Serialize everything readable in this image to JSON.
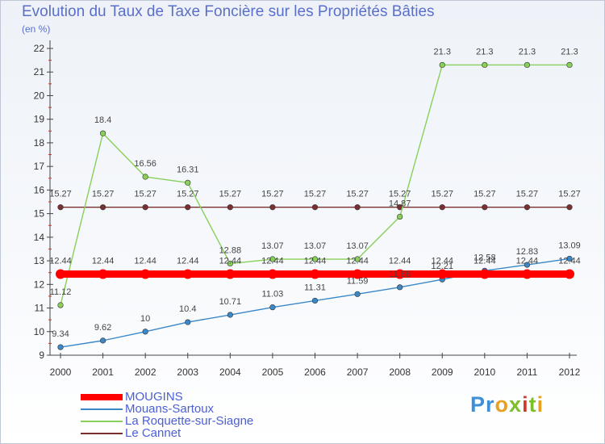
{
  "title": "Evolution du Taux de Taxe Foncière sur les Propriétés Bâties",
  "unit_label": "(en %)",
  "logo_text": "Proxiti",
  "chart_data": {
    "type": "line",
    "x": [
      "2000",
      "2001",
      "2002",
      "2003",
      "2004",
      "2005",
      "2006",
      "2007",
      "2008",
      "2009",
      "2010",
      "2011",
      "2012"
    ],
    "ylim": [
      9,
      22
    ],
    "yticks": [
      "9",
      "10",
      "11",
      "12",
      "13",
      "14",
      "15",
      "16",
      "17",
      "18",
      "19",
      "20",
      "21",
      "22"
    ],
    "grid": false,
    "legend_position": "bottom-left",
    "series": [
      {
        "name": "MOUGINS",
        "color": "#ff0000",
        "values": [
          12.44,
          12.44,
          12.44,
          12.44,
          12.44,
          12.44,
          12.44,
          12.44,
          12.44,
          12.44,
          12.44,
          12.44,
          12.44
        ],
        "labels": [
          "12.44",
          "12.44",
          "12.44",
          "12.44",
          "12.44",
          "12.44",
          "12.44",
          "12.44",
          "12.44",
          "12.44",
          "12.44",
          "12.44",
          "12.44"
        ]
      },
      {
        "name": "Mouans-Sartoux",
        "color": "#3a88c8",
        "values": [
          9.34,
          9.62,
          10,
          10.4,
          10.71,
          11.03,
          11.31,
          11.59,
          11.88,
          12.21,
          12.58,
          12.83,
          13.09
        ],
        "labels": [
          "9.34",
          "9.62",
          "10",
          "10.4",
          "10.71",
          "11.03",
          "11.31",
          "11.59",
          "11.88",
          "12.21",
          "12.58",
          "12.83",
          "13.09"
        ]
      },
      {
        "name": "La Roquette-sur-Siagne",
        "color": "#88d05a",
        "values": [
          11.12,
          18.4,
          16.56,
          16.31,
          12.88,
          13.07,
          13.07,
          13.07,
          14.87,
          21.3,
          21.3,
          21.3,
          21.3
        ],
        "labels": [
          "11.12",
          "18.4",
          "16.56",
          "16.31",
          "12.88",
          "13.07",
          "13.07",
          "13.07",
          "14.87",
          "21.3",
          "21.3",
          "21.3",
          "21.3"
        ]
      },
      {
        "name": "Le Cannet",
        "color": "#7a3030",
        "values": [
          15.27,
          15.27,
          15.27,
          15.27,
          15.27,
          15.27,
          15.27,
          15.27,
          15.27,
          15.27,
          15.27,
          15.27,
          15.27
        ],
        "labels": [
          "15.27",
          "15.27",
          "15.27",
          "15.27",
          "15.27",
          "15.27",
          "15.27",
          "15.27",
          "15.27",
          "15.27",
          "15.27",
          "15.27",
          "15.27"
        ]
      }
    ]
  }
}
